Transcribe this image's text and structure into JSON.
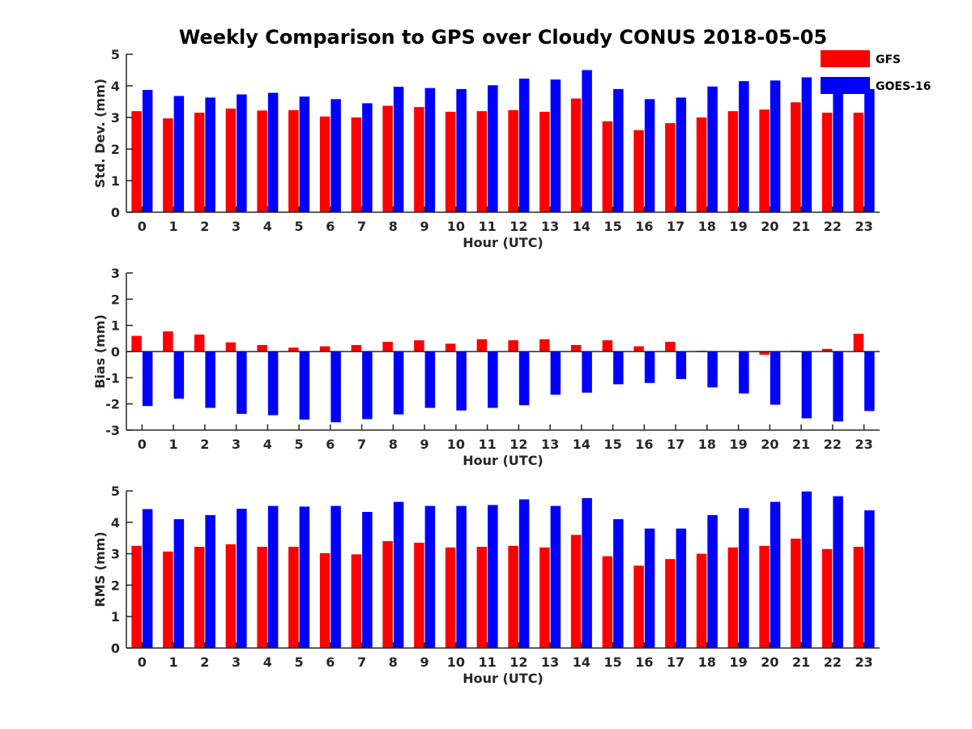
{
  "title": "Weekly Comparison to GPS over Cloudy CONUS 2018-05-05",
  "legend": [
    {
      "name": "GFS",
      "color": "#ff0000"
    },
    {
      "name": "GOES-16",
      "color": "#0000ff"
    }
  ],
  "chart_data": [
    {
      "type": "bar",
      "ylabel": "Std. Dev. (mm)",
      "xlabel": "Hour (UTC)",
      "ylim": [
        0,
        5
      ],
      "yticks": [
        0,
        1,
        2,
        3,
        4,
        5
      ],
      "categories": [
        "0",
        "1",
        "2",
        "3",
        "4",
        "5",
        "6",
        "7",
        "8",
        "9",
        "10",
        "11",
        "12",
        "13",
        "14",
        "15",
        "16",
        "17",
        "18",
        "19",
        "20",
        "21",
        "22",
        "23"
      ],
      "series": [
        {
          "name": "GFS",
          "values": [
            3.2,
            2.97,
            3.15,
            3.28,
            3.22,
            3.23,
            3.03,
            3.0,
            3.37,
            3.33,
            3.18,
            3.2,
            3.23,
            3.18,
            3.6,
            2.88,
            2.6,
            2.82,
            3.0,
            3.2,
            3.25,
            3.48,
            3.15,
            3.15
          ]
        },
        {
          "name": "GOES-16",
          "values": [
            3.87,
            3.68,
            3.63,
            3.73,
            3.78,
            3.66,
            3.58,
            3.45,
            3.97,
            3.93,
            3.9,
            4.02,
            4.23,
            4.2,
            4.5,
            3.9,
            3.58,
            3.63,
            3.98,
            4.15,
            4.17,
            4.27,
            4.0,
            3.9
          ]
        }
      ]
    },
    {
      "type": "bar",
      "ylabel": "Bias (mm)",
      "xlabel": "Hour (UTC)",
      "ylim": [
        -3,
        3
      ],
      "yticks": [
        -3,
        -2,
        -1,
        0,
        1,
        2,
        3
      ],
      "categories": [
        "0",
        "1",
        "2",
        "3",
        "4",
        "5",
        "6",
        "7",
        "8",
        "9",
        "10",
        "11",
        "12",
        "13",
        "14",
        "15",
        "16",
        "17",
        "18",
        "19",
        "20",
        "21",
        "22",
        "23"
      ],
      "series": [
        {
          "name": "GFS",
          "values": [
            0.6,
            0.77,
            0.65,
            0.35,
            0.25,
            0.15,
            0.2,
            0.25,
            0.37,
            0.43,
            0.3,
            0.47,
            0.43,
            0.47,
            0.25,
            0.43,
            0.2,
            0.37,
            0.03,
            0.0,
            -0.12,
            0.03,
            0.1,
            0.68
          ]
        },
        {
          "name": "GOES-16",
          "values": [
            -2.08,
            -1.8,
            -2.15,
            -2.38,
            -2.43,
            -2.6,
            -2.7,
            -2.58,
            -2.4,
            -2.15,
            -2.25,
            -2.15,
            -2.05,
            -1.65,
            -1.57,
            -1.25,
            -1.2,
            -1.05,
            -1.37,
            -1.6,
            -2.03,
            -2.55,
            -2.67,
            -2.27
          ]
        }
      ]
    },
    {
      "type": "bar",
      "ylabel": "RMS (mm)",
      "xlabel": "Hour (UTC)",
      "ylim": [
        0,
        5
      ],
      "yticks": [
        0,
        1,
        2,
        3,
        4,
        5
      ],
      "categories": [
        "0",
        "1",
        "2",
        "3",
        "4",
        "5",
        "6",
        "7",
        "8",
        "9",
        "10",
        "11",
        "12",
        "13",
        "14",
        "15",
        "16",
        "17",
        "18",
        "19",
        "20",
        "21",
        "22",
        "23"
      ],
      "series": [
        {
          "name": "GFS",
          "values": [
            3.25,
            3.07,
            3.22,
            3.3,
            3.22,
            3.22,
            3.02,
            2.98,
            3.4,
            3.35,
            3.2,
            3.22,
            3.25,
            3.2,
            3.6,
            2.92,
            2.62,
            2.83,
            3.0,
            3.2,
            3.25,
            3.48,
            3.15,
            3.22
          ]
        },
        {
          "name": "GOES-16",
          "values": [
            4.42,
            4.1,
            4.23,
            4.43,
            4.52,
            4.5,
            4.52,
            4.33,
            4.65,
            4.52,
            4.52,
            4.55,
            4.73,
            4.52,
            4.77,
            4.1,
            3.8,
            3.8,
            4.23,
            4.45,
            4.65,
            4.98,
            4.83,
            4.38
          ]
        }
      ]
    }
  ]
}
